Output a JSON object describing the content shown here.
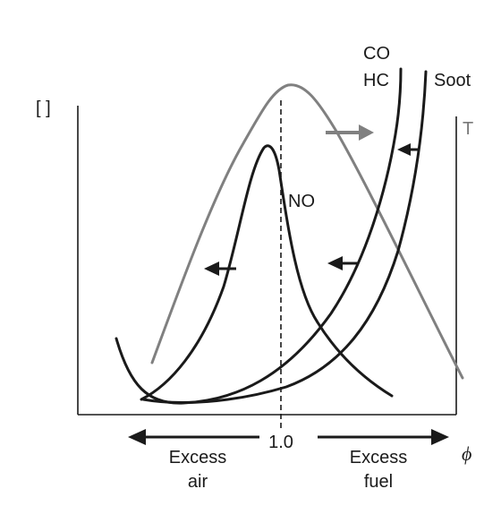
{
  "diagram": {
    "y_axis_label": "[ ]",
    "x_axis_symbol": "ϕ",
    "center_tick_label": "1.0",
    "left_direction": {
      "line1": "Excess",
      "line2": "air"
    },
    "right_direction": {
      "line1": "Excess",
      "line2": "fuel"
    },
    "curves": {
      "co_label": "CO",
      "hc_label": "HC",
      "soot_label": "Soot",
      "temperature_label": "T",
      "no_label": "NO"
    },
    "colors": {
      "black_curves": "#1a1a1a",
      "temperature_curve": "#808080"
    }
  }
}
